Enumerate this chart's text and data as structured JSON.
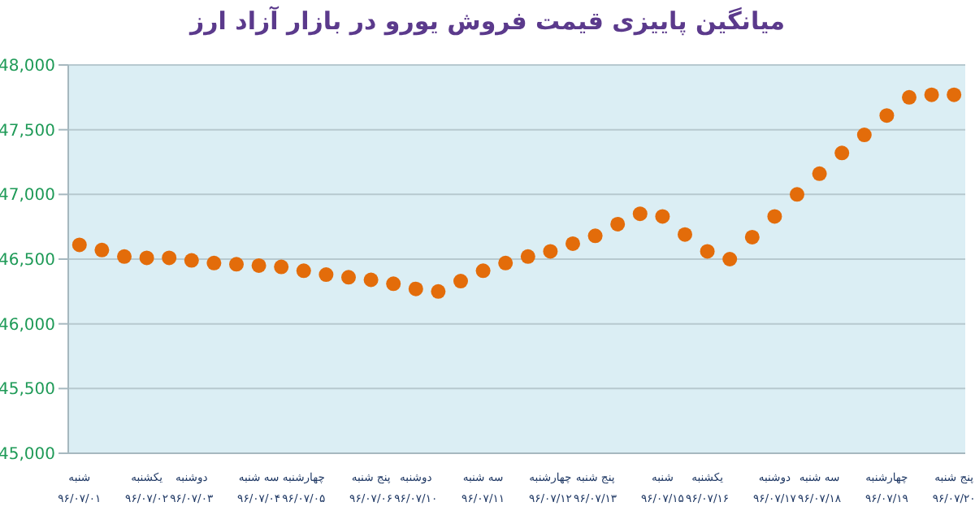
{
  "chart_data": {
    "type": "scatter",
    "title": "میانگین پاییزی قیمت فروش یورو در بازار آزاد ارز",
    "categories": [
      "شنبه\n۹۶/۰۷/۰۱",
      null,
      null,
      "یکشنبه\n۹۶/۰۷/۰۲",
      null,
      "دوشنبه\n۹۶/۰۷/۰۳",
      null,
      null,
      "سه شنبه\n۹۶/۰۷/۰۴",
      null,
      "چهارشنبه\n۹۶/۰۷/۰۵",
      null,
      null,
      "پنج شنبه\n۹۶/۰۷/۰۶",
      null,
      "دوشنبه\n۹۶/۰۷/۱۰",
      null,
      null,
      "سه شنبه\n۹۶/۰۷/۱۱",
      null,
      null,
      "چهارشنبه\n۹۶/۰۷/۱۲",
      null,
      "پنج شنبه\n۹۶/۰۷/۱۳",
      null,
      null,
      "شنبه\n۹۶/۰۷/۱۵",
      null,
      "یکشنبه\n۹۶/۰۷/۱۶",
      null,
      null,
      "دوشنبه\n۹۶/۰۷/۱۷",
      null,
      "سه شنبه\n۹۶/۰۷/۱۸",
      null,
      null,
      "چهارشنبه\n۹۶/۰۷/۱۹",
      null,
      null,
      "پنج شنبه\n۹۶/۰۷/۲۰"
    ],
    "series": [
      {
        "color": "#e36c0a",
        "values": [
          46610,
          46570,
          46520,
          46510,
          46510,
          46490,
          46470,
          46460,
          46450,
          46440,
          46410,
          46380,
          46360,
          46340,
          46310,
          46270,
          46250,
          46330,
          46410,
          46470,
          46520,
          46560,
          46620,
          46680,
          46770,
          46850,
          46830,
          46690,
          46560,
          46500,
          46670,
          46830,
          47000,
          47160,
          47320,
          47460,
          47610,
          47750,
          47770,
          47770
        ]
      }
    ],
    "ylim": [
      45000,
      48000
    ],
    "yticks": [
      {
        "value": 45000,
        "label": "45,000"
      },
      {
        "value": 45500,
        "label": "45,500"
      },
      {
        "value": 46000,
        "label": "46,000"
      },
      {
        "value": 46500,
        "label": "46,500"
      },
      {
        "value": 47000,
        "label": "47,000"
      },
      {
        "value": 47500,
        "label": "47,500"
      },
      {
        "value": 48000,
        "label": "48,000"
      }
    ],
    "grid": "y",
    "legend": false,
    "marker": "circle"
  }
}
